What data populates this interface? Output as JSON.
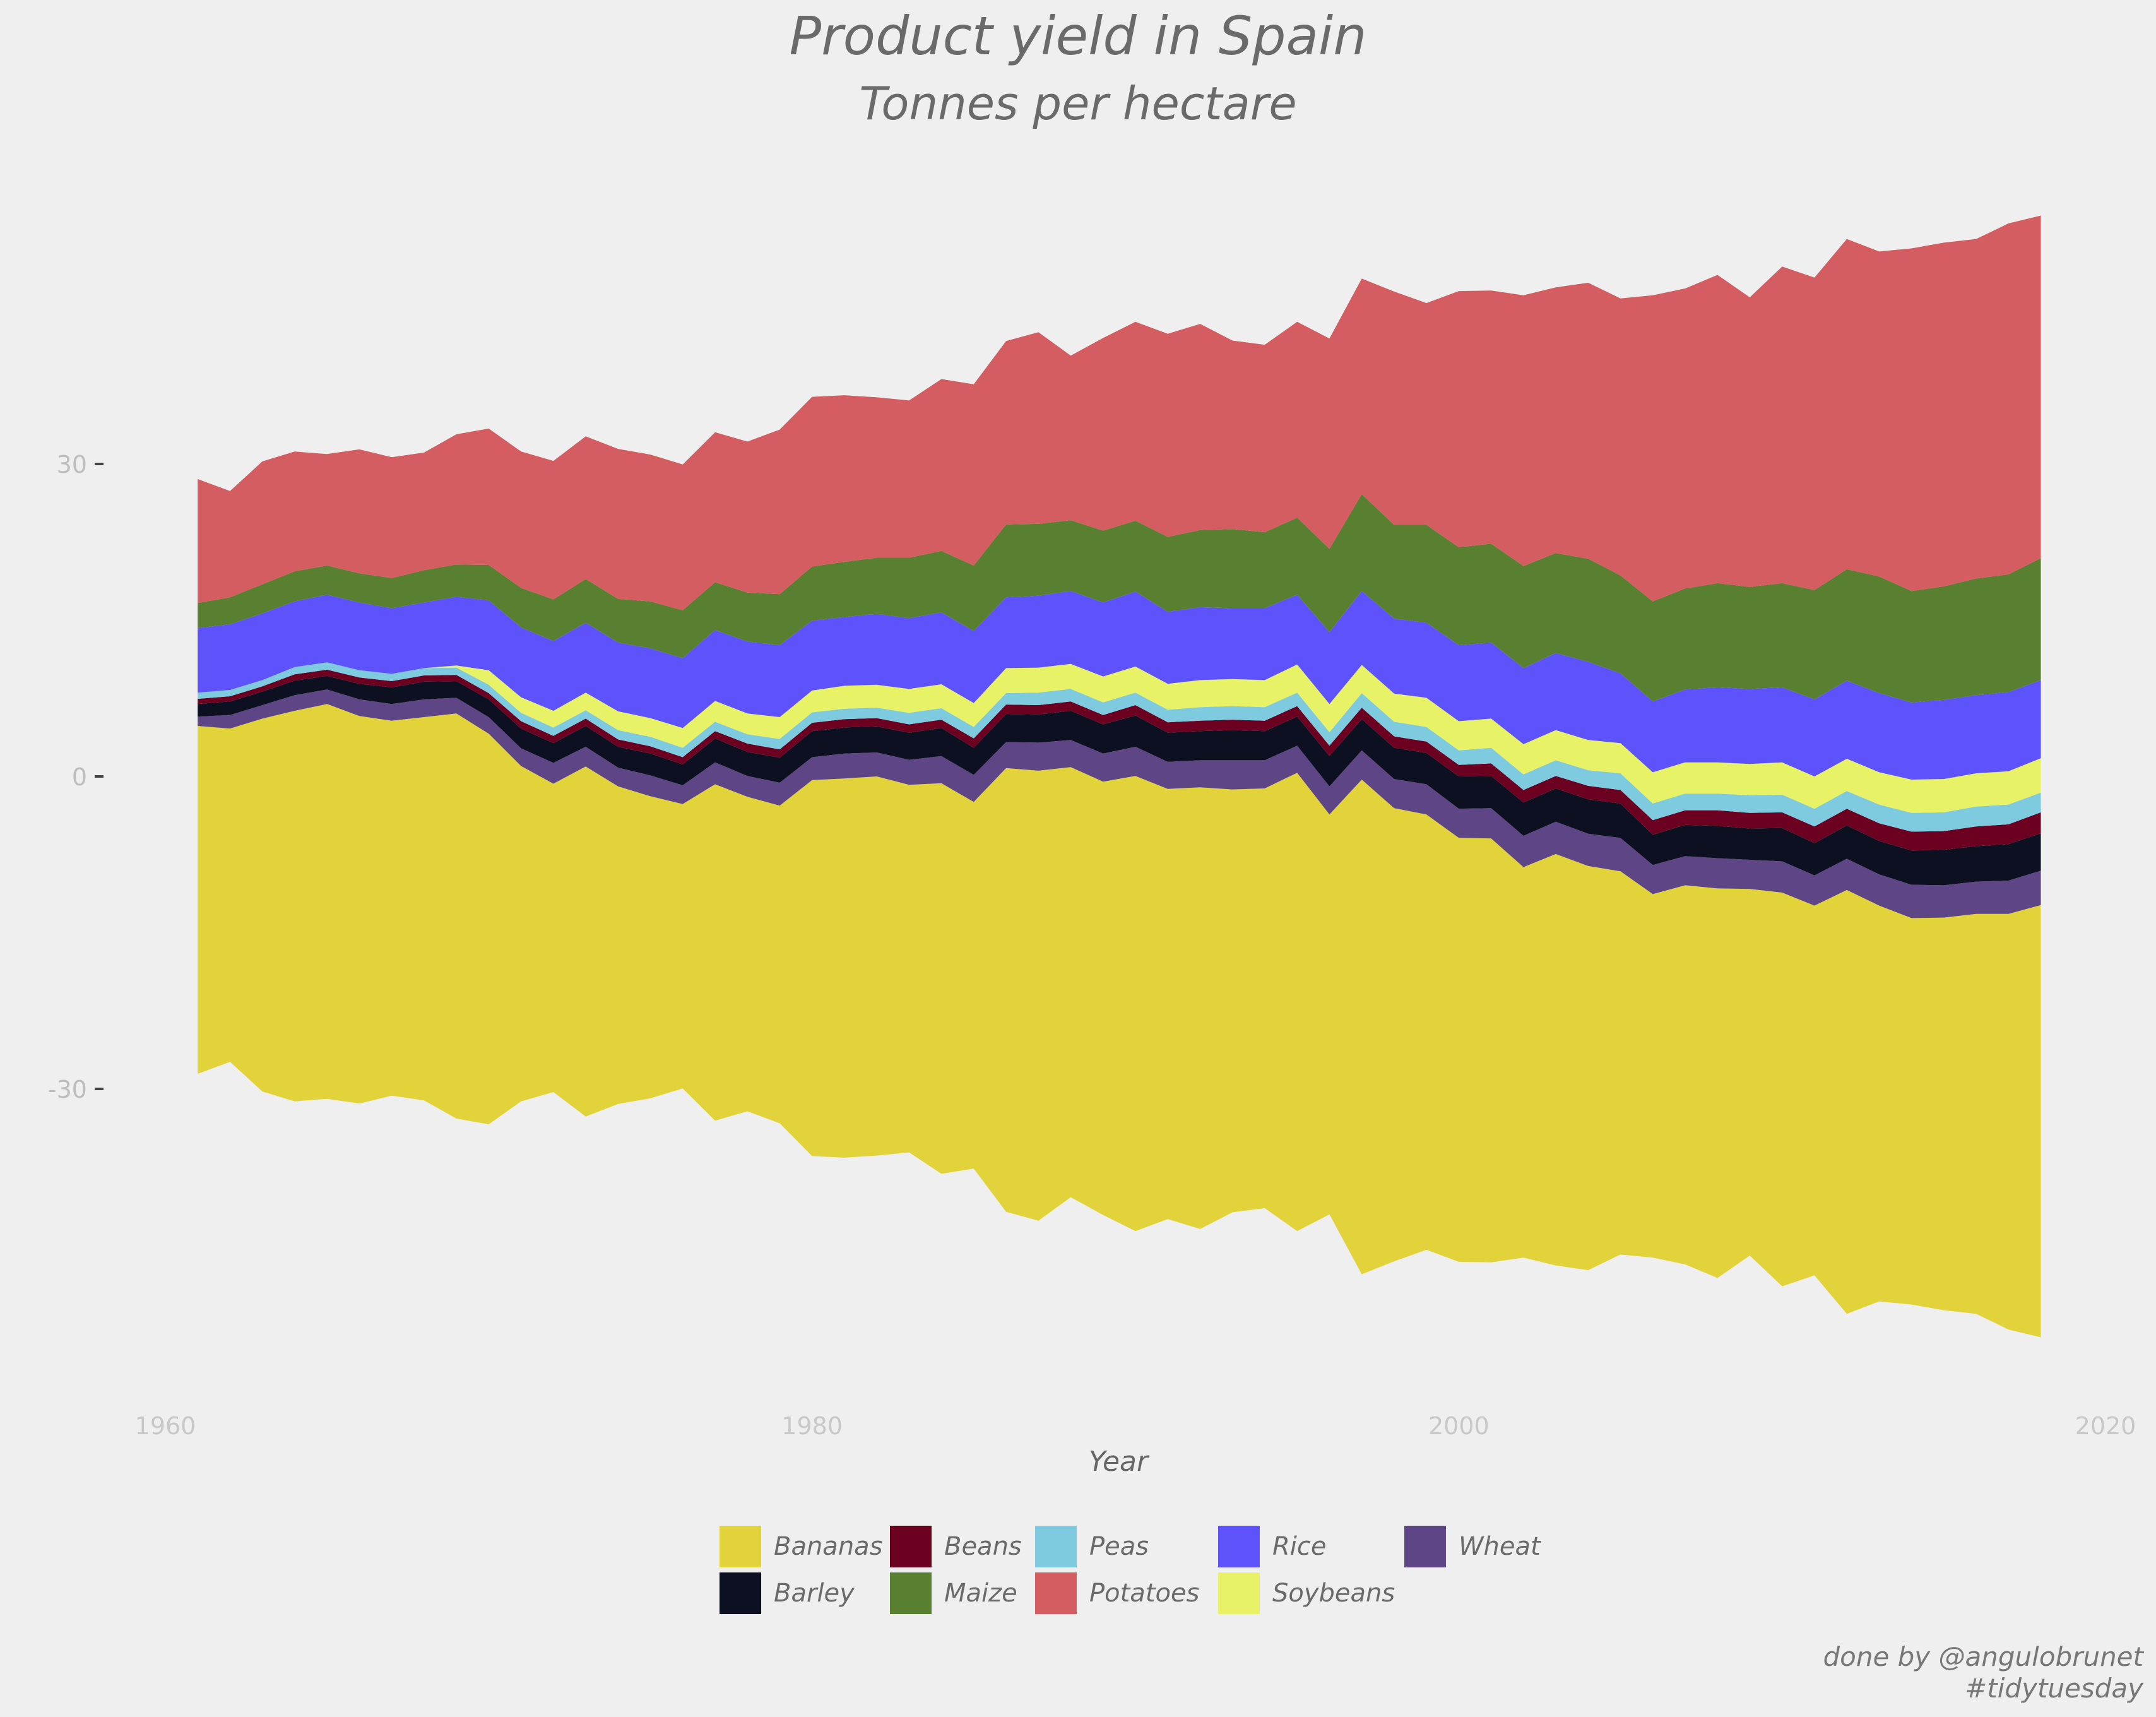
{
  "title": "Product yield in Spain",
  "subtitle": "Tonnes per hectare",
  "caption": {
    "line1": "done by @angulobrunet",
    "line2": "#tidytuesday"
  },
  "chart_data": {
    "type": "area",
    "subtype": "streamgraph",
    "xlabel": "Year",
    "ylabel": "",
    "xlim": [
      1955,
      2020
    ],
    "ylim": [
      -60,
      55
    ],
    "x_ticks": [
      1960,
      1980,
      2000,
      2020
    ],
    "y_ticks": [
      30,
      0,
      -30
    ],
    "grid": false,
    "legend_position": "bottom",
    "x": [
      1961,
      1962,
      1963,
      1964,
      1965,
      1966,
      1967,
      1968,
      1969,
      1970,
      1971,
      1972,
      1973,
      1974,
      1975,
      1976,
      1977,
      1978,
      1979,
      1980,
      1981,
      1982,
      1983,
      1984,
      1985,
      1986,
      1987,
      1988,
      1989,
      1990,
      1991,
      1992,
      1993,
      1994,
      1995,
      1996,
      1997,
      1998,
      1999,
      2000,
      2001,
      2002,
      2003,
      2004,
      2005,
      2006,
      2007,
      2008,
      2009,
      2010,
      2011,
      2012,
      2013,
      2014,
      2015,
      2016,
      2017,
      2018
    ],
    "series": [
      {
        "name": "Bananas",
        "color": "#e2d33a",
        "values": [
          33.4,
          32.0,
          35.8,
          37.5,
          37.9,
          37.2,
          36.0,
          36.8,
          38.9,
          37.5,
          32.2,
          29.6,
          33.6,
          30.5,
          29.0,
          27.3,
          32.3,
          30.2,
          30.5,
          36.1,
          36.4,
          36.4,
          35.3,
          37.5,
          35.2,
          42.6,
          43.2,
          41.3,
          41.6,
          43.7,
          41.3,
          42.4,
          40.6,
          40.3,
          44.0,
          38.4,
          47.5,
          43.5,
          41.8,
          40.7,
          40.7,
          37.5,
          39.5,
          38.8,
          36.8,
          34.9,
          36.4,
          37.4,
          35.2,
          37.8,
          35.5,
          40.7,
          38.0,
          37.1,
          37.7,
          38.4,
          39.9,
          41.5
        ]
      },
      {
        "name": "Wheat",
        "color": "#5e4585",
        "values": [
          0.9,
          1.3,
          1.3,
          1.5,
          1.4,
          1.6,
          1.6,
          1.7,
          1.5,
          1.6,
          1.7,
          2.0,
          1.9,
          1.8,
          2.0,
          1.8,
          2.1,
          2.0,
          2.2,
          2.2,
          2.4,
          2.3,
          2.4,
          2.6,
          2.6,
          2.5,
          2.7,
          2.6,
          2.7,
          2.8,
          2.6,
          2.6,
          2.8,
          2.7,
          2.6,
          2.7,
          2.8,
          2.8,
          2.9,
          2.8,
          2.9,
          3.0,
          3.1,
          3.1,
          3.2,
          2.8,
          2.8,
          2.9,
          2.8,
          3.0,
          2.9,
          3.0,
          3.0,
          3.2,
          3.1,
          3.1,
          3.2,
          3.3
        ]
      },
      {
        "name": "Barley",
        "color": "#0c1020",
        "values": [
          1.2,
          1.3,
          1.3,
          1.4,
          1.3,
          1.5,
          1.6,
          1.7,
          1.6,
          1.7,
          1.9,
          1.9,
          2.0,
          2.0,
          2.1,
          2.0,
          2.3,
          2.3,
          2.4,
          2.5,
          2.5,
          2.5,
          2.6,
          2.7,
          2.6,
          2.7,
          2.7,
          2.8,
          2.8,
          3.0,
          2.8,
          2.8,
          2.9,
          2.8,
          2.8,
          2.9,
          3.0,
          3.0,
          3.0,
          3.1,
          3.1,
          3.2,
          3.2,
          3.3,
          3.3,
          2.9,
          3.0,
          3.1,
          3.0,
          3.2,
          3.1,
          3.2,
          3.2,
          3.3,
          3.4,
          3.4,
          3.5,
          3.6
        ]
      },
      {
        "name": "Beans",
        "color": "#6b0020",
        "values": [
          0.5,
          0.5,
          0.5,
          0.6,
          0.6,
          0.6,
          0.6,
          0.6,
          0.6,
          0.6,
          0.7,
          0.7,
          0.7,
          0.7,
          0.7,
          0.7,
          0.7,
          0.8,
          0.8,
          0.8,
          0.8,
          0.8,
          0.8,
          0.8,
          0.9,
          0.9,
          0.9,
          0.9,
          0.9,
          1.0,
          1.0,
          1.0,
          1.0,
          1.0,
          1.0,
          1.0,
          1.1,
          1.1,
          1.1,
          1.1,
          1.2,
          1.2,
          1.2,
          1.3,
          1.3,
          1.4,
          1.4,
          1.5,
          1.5,
          1.5,
          1.6,
          1.6,
          1.7,
          1.8,
          1.8,
          1.9,
          1.9,
          2.0
        ]
      },
      {
        "name": "Peas",
        "color": "#7ecbe0",
        "values": [
          0.6,
          0.6,
          0.6,
          0.7,
          0.7,
          0.7,
          0.7,
          0.7,
          0.7,
          0.8,
          0.8,
          0.8,
          0.8,
          0.9,
          0.9,
          0.9,
          0.9,
          0.9,
          1.0,
          1.0,
          1.0,
          1.0,
          1.1,
          1.1,
          1.1,
          1.1,
          1.2,
          1.2,
          1.2,
          1.2,
          1.2,
          1.3,
          1.3,
          1.3,
          1.3,
          1.3,
          1.4,
          1.4,
          1.4,
          1.4,
          1.5,
          1.5,
          1.5,
          1.5,
          1.6,
          1.6,
          1.6,
          1.6,
          1.7,
          1.7,
          1.7,
          1.7,
          1.8,
          1.8,
          1.8,
          1.9,
          1.9,
          1.9
        ]
      },
      {
        "name": "Soybeans",
        "color": "#e7f266",
        "values": [
          0.0,
          0.0,
          0.0,
          0.0,
          0.0,
          0.0,
          0.0,
          0.0,
          0.2,
          1.4,
          1.5,
          1.6,
          1.7,
          1.8,
          1.8,
          1.9,
          2.0,
          2.0,
          2.1,
          2.1,
          2.2,
          2.2,
          2.3,
          2.3,
          2.3,
          2.4,
          2.4,
          2.4,
          2.5,
          2.5,
          2.5,
          2.6,
          2.6,
          2.6,
          2.7,
          2.7,
          2.7,
          2.7,
          2.8,
          2.8,
          2.8,
          2.9,
          2.9,
          2.9,
          2.9,
          3.0,
          3.0,
          3.0,
          3.0,
          3.1,
          3.1,
          3.1,
          3.1,
          3.2,
          3.2,
          3.2,
          3.2,
          3.3
        ]
      },
      {
        "name": "Rice",
        "color": "#5e53fa",
        "values": [
          6.2,
          6.3,
          6.4,
          6.3,
          6.5,
          6.5,
          6.3,
          6.3,
          6.6,
          6.7,
          6.7,
          6.7,
          6.7,
          6.6,
          6.7,
          6.7,
          6.8,
          6.9,
          6.9,
          6.7,
          6.6,
          6.8,
          6.8,
          6.9,
          6.9,
          6.8,
          6.9,
          7.0,
          7.1,
          7.2,
          6.9,
          7.0,
          6.8,
          6.9,
          6.7,
          6.9,
          7.1,
          7.2,
          7.2,
          7.3,
          7.3,
          7.3,
          7.4,
          7.5,
          6.7,
          6.8,
          7.0,
          7.2,
          7.2,
          7.2,
          7.4,
          7.5,
          7.6,
          7.4,
          7.6,
          7.5,
          7.6,
          7.5
        ]
      },
      {
        "name": "Maize",
        "color": "#597f30",
        "values": [
          2.4,
          2.6,
          2.8,
          2.9,
          2.8,
          2.8,
          2.9,
          3.1,
          3.1,
          3.4,
          3.8,
          4.0,
          4.2,
          4.2,
          4.5,
          4.6,
          4.6,
          4.7,
          4.9,
          5.2,
          5.3,
          5.4,
          5.8,
          5.9,
          6.3,
          7.0,
          6.9,
          6.8,
          6.9,
          6.8,
          7.2,
          7.4,
          7.6,
          7.3,
          7.4,
          8.0,
          9.3,
          9.0,
          9.4,
          9.4,
          9.5,
          9.8,
          9.6,
          9.9,
          9.4,
          9.6,
          9.7,
          10.0,
          9.8,
          10.0,
          10.5,
          10.7,
          11.2,
          10.7,
          10.9,
          11.2,
          11.3,
          11.7
        ]
      },
      {
        "name": "Potatoes",
        "color": "#d45d61",
        "values": [
          11.9,
          10.2,
          11.8,
          11.5,
          10.7,
          11.9,
          11.6,
          11.3,
          12.5,
          13.1,
          13.1,
          13.3,
          13.7,
          14.4,
          14.1,
          14.0,
          14.4,
          14.5,
          15.8,
          16.3,
          16.0,
          15.4,
          15.1,
          16.5,
          17.4,
          17.6,
          18.4,
          15.8,
          18.5,
          19.1,
          19.5,
          19.8,
          18.1,
          18.0,
          18.8,
          20.2,
          20.7,
          22.4,
          21.3,
          24.6,
          24.3,
          26.0,
          25.5,
          26.5,
          26.6,
          29.4,
          28.8,
          29.6,
          27.8,
          30.4,
          30.0,
          31.7,
          31.2,
          32.9,
          33.0,
          32.6,
          33.7,
          32.9
        ]
      }
    ]
  }
}
